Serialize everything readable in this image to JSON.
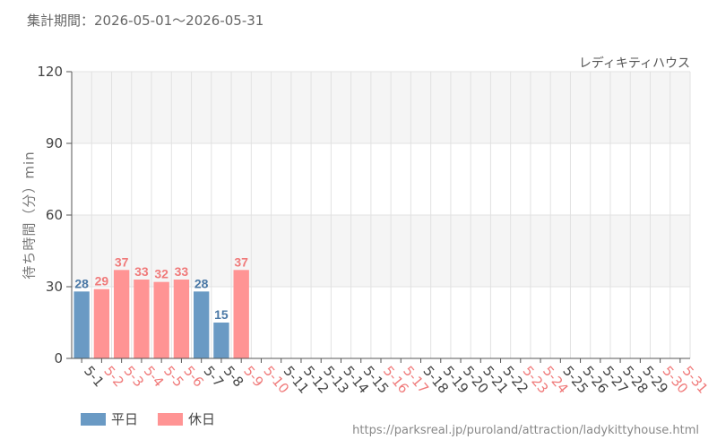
{
  "header": {
    "period": "集計期間：2026-05-01～2026-05-31",
    "attraction": "レディキティハウス"
  },
  "legend": {
    "weekday_label": "平日",
    "holiday_label": "休日"
  },
  "source_url": "https://parksreal.jp/puroland/attraction/ladykittyhouse.html",
  "colors": {
    "weekday": "#6a9ac4",
    "holiday": "#ff9494",
    "weekday_text": "#4a78a6",
    "holiday_text": "#f07a7a",
    "band": "#f5f5f5",
    "grid": "#e2e2e2"
  },
  "chart_data": {
    "type": "bar",
    "title": "レディキティハウス",
    "xlabel": "",
    "ylabel": "待ち時間（分）min",
    "ylim": [
      0,
      120
    ],
    "yticks": [
      0,
      30,
      60,
      90,
      120
    ],
    "grid": true,
    "legend_position": "bottom-left",
    "categories": [
      "5-1",
      "5-2",
      "5-3",
      "5-4",
      "5-5",
      "5-6",
      "5-7",
      "5-8",
      "5-9",
      "5-10",
      "5-11",
      "5-12",
      "5-13",
      "5-14",
      "5-15",
      "5-16",
      "5-17",
      "5-18",
      "5-19",
      "5-20",
      "5-21",
      "5-22",
      "5-23",
      "5-24",
      "5-25",
      "5-26",
      "5-27",
      "5-28",
      "5-29",
      "5-30",
      "5-31"
    ],
    "day_types": [
      "weekday",
      "holiday",
      "holiday",
      "holiday",
      "holiday",
      "holiday",
      "weekday",
      "weekday",
      "holiday",
      "holiday",
      "weekday",
      "weekday",
      "weekday",
      "weekday",
      "weekday",
      "holiday",
      "holiday",
      "weekday",
      "weekday",
      "weekday",
      "weekday",
      "weekday",
      "holiday",
      "holiday",
      "weekday",
      "weekday",
      "weekday",
      "weekday",
      "weekday",
      "holiday",
      "holiday"
    ],
    "values": [
      28,
      29,
      37,
      33,
      32,
      33,
      28,
      15,
      37,
      null,
      null,
      null,
      null,
      null,
      null,
      null,
      null,
      null,
      null,
      null,
      null,
      null,
      null,
      null,
      null,
      null,
      null,
      null,
      null,
      null,
      null
    ]
  }
}
